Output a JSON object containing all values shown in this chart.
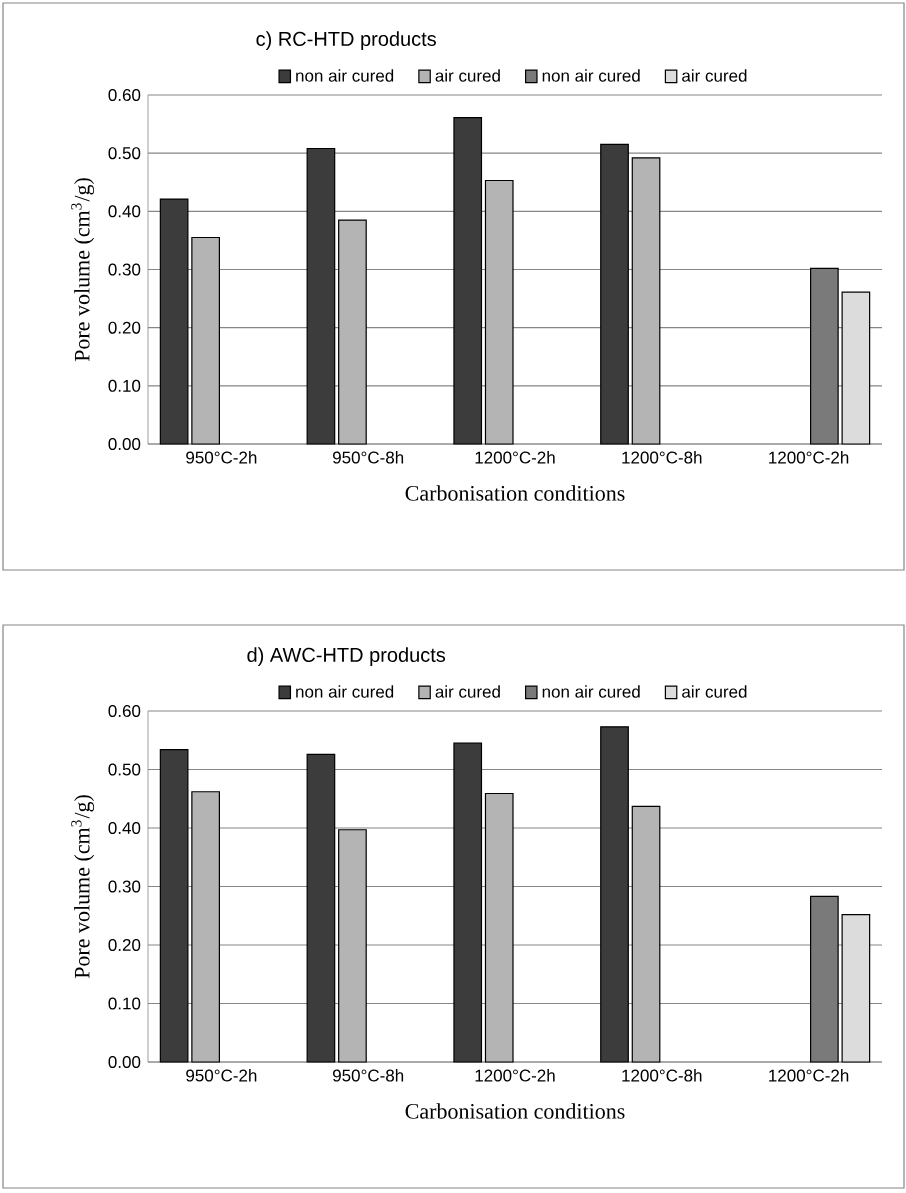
{
  "chart_data": [
    {
      "type": "bar",
      "title": "c) RC-HTD products",
      "xlabel": "Carbonisation conditions",
      "ylabel": "Pore volume (cm$^{3}$/g)",
      "categories": [
        "950°C-2h",
        "950°C-8h",
        "1200°C-2h",
        "1200°C-8h",
        "1200°C-2h"
      ],
      "series": [
        {
          "name": "non air cured",
          "color": "#3c3c3c",
          "values": [
            0.421,
            0.508,
            0.561,
            0.515,
            null
          ]
        },
        {
          "name": "air cured",
          "color": "#b4b4b4",
          "values": [
            0.355,
            0.385,
            0.453,
            0.492,
            null
          ]
        },
        {
          "name": "non air cured",
          "color": "#7a7a7a",
          "values": [
            null,
            null,
            null,
            null,
            0.302
          ]
        },
        {
          "name": "air cured",
          "color": "#dcdcdc",
          "values": [
            null,
            null,
            null,
            null,
            0.261
          ]
        }
      ],
      "ylim": [
        0,
        0.6
      ],
      "yticks": [
        {
          "value": 0,
          "label": "0.00"
        },
        {
          "value": 0.1,
          "label": "0.10"
        },
        {
          "value": 0.2,
          "label": "0.20"
        },
        {
          "value": 0.3,
          "label": "0.30"
        },
        {
          "value": 0.4,
          "label": "0.40"
        },
        {
          "value": 0.5,
          "label": "0.50"
        },
        {
          "value": 0.6,
          "label": "0.60"
        }
      ],
      "grid": "y",
      "legend": "top"
    },
    {
      "type": "bar",
      "title": "d) AWC-HTD products",
      "xlabel": "Carbonisation conditions",
      "ylabel": "Pore volume (cm$^{3}$/g)",
      "categories": [
        "950°C-2h",
        "950°C-8h",
        "1200°C-2h",
        "1200°C-8h",
        "1200°C-2h"
      ],
      "series": [
        {
          "name": "non air cured",
          "color": "#3c3c3c",
          "values": [
            0.534,
            0.526,
            0.545,
            0.573,
            null
          ]
        },
        {
          "name": "air cured",
          "color": "#b4b4b4",
          "values": [
            0.462,
            0.397,
            0.459,
            0.437,
            null
          ]
        },
        {
          "name": "non air cured",
          "color": "#7a7a7a",
          "values": [
            null,
            null,
            null,
            null,
            0.283
          ]
        },
        {
          "name": "air cured",
          "color": "#dcdcdc",
          "values": [
            null,
            null,
            null,
            null,
            0.252
          ]
        }
      ],
      "ylim": [
        0,
        0.6
      ],
      "yticks": [
        {
          "value": 0,
          "label": "0.00"
        },
        {
          "value": 0.1,
          "label": "0.10"
        },
        {
          "value": 0.2,
          "label": "0.20"
        },
        {
          "value": 0.3,
          "label": "0.30"
        },
        {
          "value": 0.4,
          "label": "0.40"
        },
        {
          "value": 0.5,
          "label": "0.50"
        },
        {
          "value": 0.6,
          "label": "0.60"
        }
      ],
      "grid": "y",
      "legend": "top"
    }
  ]
}
